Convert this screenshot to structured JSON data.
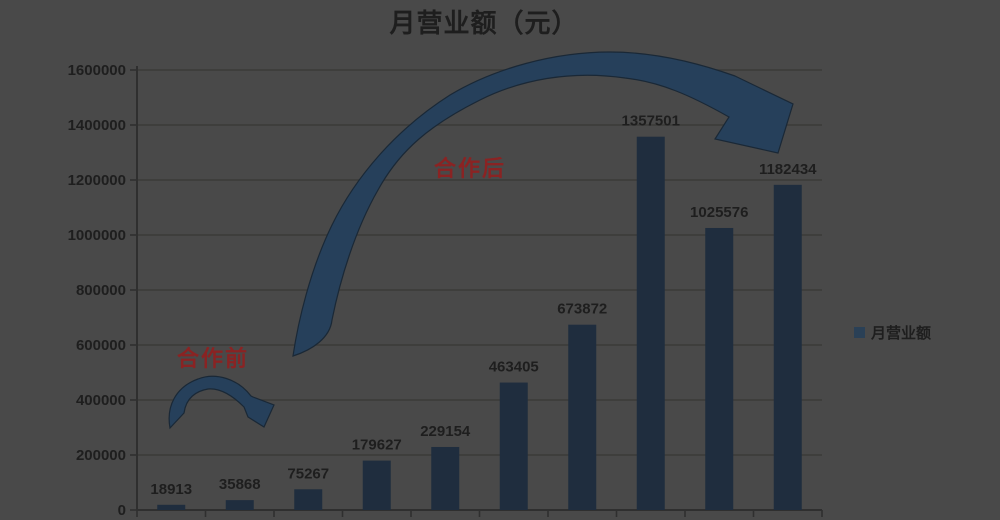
{
  "title": "月营业额（元）",
  "legend": {
    "label": "月营业额"
  },
  "annotations": {
    "before": "合作前",
    "after": "合作后"
  },
  "colors": {
    "background": "#494949",
    "bar": "#1f2d3e",
    "grid": "#3a3a39",
    "axis": "#2f2f2f",
    "text": "#1e1e1e",
    "annotation_red": "#8a2323",
    "arrow_fill": "#26405b",
    "arrow_outline": "#1a2836",
    "legend_marker": "#2a4056"
  },
  "chart_data": {
    "type": "bar",
    "title": "月营业额（元）",
    "values": [
      18913,
      35868,
      75267,
      179627,
      229154,
      463405,
      673872,
      1357501,
      1025576,
      1182434
    ],
    "data_labels": [
      "18913",
      "35868",
      "75267",
      "179627",
      "229154",
      "463405",
      "673872",
      "1357501",
      "1025576",
      "1182434"
    ],
    "y_ticks": [
      0,
      200000,
      400000,
      600000,
      800000,
      1000000,
      1200000,
      1400000,
      1600000
    ],
    "ylim": [
      0,
      1600000
    ],
    "xlabel": "",
    "ylabel": "",
    "legend": [
      "月营业额"
    ],
    "legend_position": "right",
    "grid": true,
    "annotations": [
      "合作前",
      "合作后"
    ]
  }
}
